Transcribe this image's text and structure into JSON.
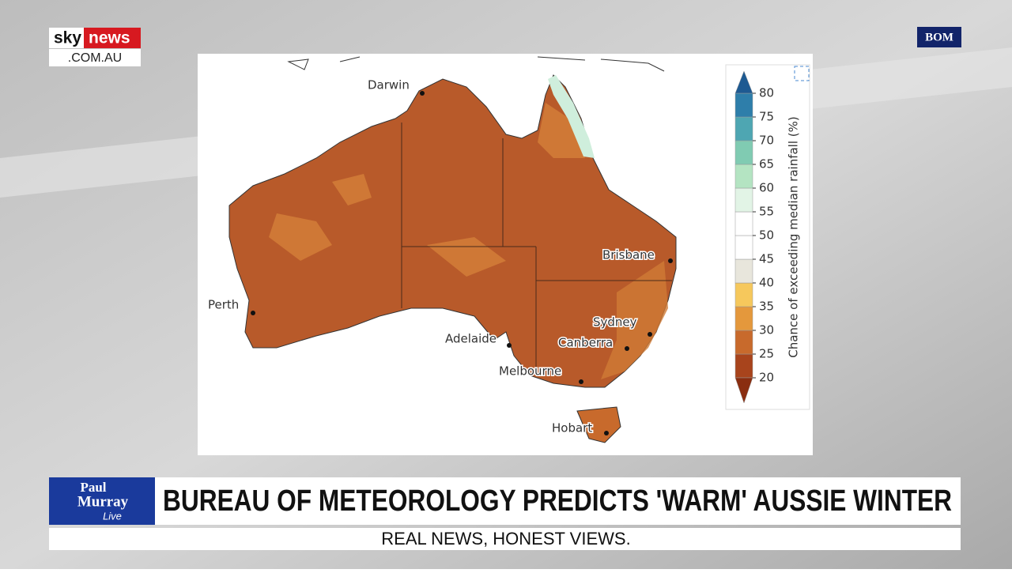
{
  "header": {
    "logo_sky": "sky",
    "logo_news": "news",
    "logo_domain": ".COM.AU",
    "source_badge": "BOM"
  },
  "map": {
    "cities": [
      "Darwin",
      "Brisbane",
      "Perth",
      "Sydney",
      "Adelaide",
      "Canberra",
      "Melbourne",
      "Hobart"
    ],
    "colorbar": {
      "label": "Chance of exceeding median rainfall (%)",
      "ticks": [
        20,
        25,
        30,
        35,
        40,
        45,
        50,
        55,
        60,
        65,
        70,
        75,
        80
      ],
      "colors": [
        "#a8441c",
        "#c86a2c",
        "#e4983c",
        "#f6c85c",
        "#e8e6dc",
        "#ffffff",
        "#ffffff",
        "#e2f4e6",
        "#b4e4c2",
        "#80cbb2",
        "#4ea6b2",
        "#2e7eaa"
      ],
      "extend_low_color": "#8a2e10",
      "extend_high_color": "#1e5a92"
    }
  },
  "ticker": {
    "show_line1": "Paul",
    "show_line2": "Murray",
    "show_line3": "Live",
    "headline": "BUREAU OF METEOROLOGY PREDICTS 'WARM' AUSSIE WINTER",
    "tagline": "REAL NEWS, HONEST VIEWS."
  }
}
